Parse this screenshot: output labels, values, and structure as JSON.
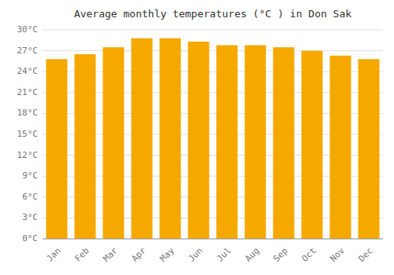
{
  "chart_data": {
    "type": "bar",
    "title": "Average monthly temperatures (°C ) in Don Sak",
    "categories": [
      "Jan",
      "Feb",
      "Mar",
      "Apr",
      "May",
      "Jun",
      "Jul",
      "Aug",
      "Sep",
      "Oct",
      "Nov",
      "Dec"
    ],
    "values": [
      25.8,
      26.5,
      27.5,
      28.8,
      28.8,
      28.3,
      27.8,
      27.8,
      27.5,
      27.0,
      26.3,
      25.8
    ],
    "color": "#F5A800",
    "ylim": [
      0,
      30
    ],
    "yticks": [
      {
        "value": 0,
        "label": "0°C"
      },
      {
        "value": 3,
        "label": "3°C"
      },
      {
        "value": 6,
        "label": "6°C"
      },
      {
        "value": 9,
        "label": "9°C"
      },
      {
        "value": 12,
        "label": "12°C"
      },
      {
        "value": 15,
        "label": "15°C"
      },
      {
        "value": 18,
        "label": "18°C"
      },
      {
        "value": 21,
        "label": "21°C"
      },
      {
        "value": 24,
        "label": "24°C"
      },
      {
        "value": 27,
        "label": "27°C"
      },
      {
        "value": 30,
        "label": "30°C"
      }
    ],
    "grid": true
  }
}
